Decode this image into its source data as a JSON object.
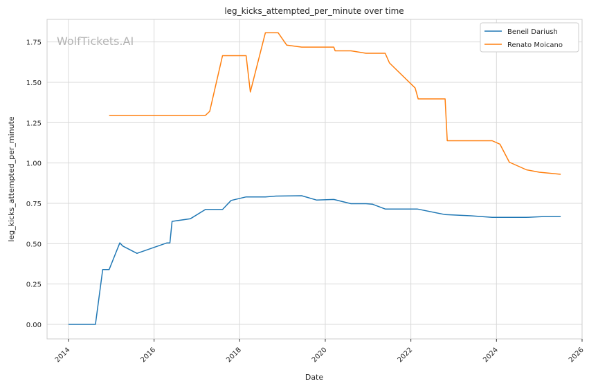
{
  "watermark": "WolfTickets.AI",
  "chart_data": {
    "type": "line",
    "title": "leg_kicks_attempted_per_minute over time",
    "xlabel": "Date",
    "ylabel": "leg_kicks_attempted_per_minute",
    "xlim": [
      2013.5,
      2026.0
    ],
    "ylim": [
      -0.09,
      1.89
    ],
    "x_ticks": [
      2014,
      2016,
      2018,
      2020,
      2022,
      2024,
      2026
    ],
    "y_ticks": [
      0.0,
      0.25,
      0.5,
      0.75,
      1.0,
      1.25,
      1.5,
      1.75
    ],
    "grid": true,
    "legend_position": "top-right",
    "series": [
      {
        "name": "Beneil Dariush",
        "color": "#1f77b4",
        "points": [
          [
            2014.0,
            0.0
          ],
          [
            2014.63,
            0.0
          ],
          [
            2014.8,
            0.34
          ],
          [
            2014.95,
            0.34
          ],
          [
            2015.2,
            0.505
          ],
          [
            2015.27,
            0.485
          ],
          [
            2015.6,
            0.44
          ],
          [
            2016.3,
            0.505
          ],
          [
            2016.37,
            0.505
          ],
          [
            2016.42,
            0.638
          ],
          [
            2016.85,
            0.655
          ],
          [
            2017.2,
            0.712
          ],
          [
            2017.6,
            0.712
          ],
          [
            2017.8,
            0.768
          ],
          [
            2018.15,
            0.79
          ],
          [
            2018.6,
            0.79
          ],
          [
            2018.85,
            0.795
          ],
          [
            2019.45,
            0.797
          ],
          [
            2019.8,
            0.77
          ],
          [
            2020.2,
            0.774
          ],
          [
            2020.6,
            0.748
          ],
          [
            2020.95,
            0.748
          ],
          [
            2021.1,
            0.745
          ],
          [
            2021.4,
            0.715
          ],
          [
            2022.15,
            0.715
          ],
          [
            2022.8,
            0.68
          ],
          [
            2023.4,
            0.673
          ],
          [
            2023.9,
            0.663
          ],
          [
            2024.7,
            0.663
          ],
          [
            2025.1,
            0.668
          ],
          [
            2025.5,
            0.668
          ]
        ]
      },
      {
        "name": "Renato Moicano",
        "color": "#ff7f0e",
        "points": [
          [
            2014.95,
            1.295
          ],
          [
            2017.2,
            1.295
          ],
          [
            2017.3,
            1.32
          ],
          [
            2017.6,
            1.665
          ],
          [
            2018.15,
            1.665
          ],
          [
            2018.25,
            1.44
          ],
          [
            2018.6,
            1.807
          ],
          [
            2018.9,
            1.807
          ],
          [
            2019.1,
            1.73
          ],
          [
            2019.45,
            1.718
          ],
          [
            2020.2,
            1.718
          ],
          [
            2020.23,
            1.695
          ],
          [
            2020.6,
            1.695
          ],
          [
            2020.95,
            1.68
          ],
          [
            2021.4,
            1.68
          ],
          [
            2021.5,
            1.62
          ],
          [
            2022.1,
            1.465
          ],
          [
            2022.17,
            1.397
          ],
          [
            2022.8,
            1.397
          ],
          [
            2022.85,
            1.138
          ],
          [
            2023.9,
            1.138
          ],
          [
            2024.08,
            1.117
          ],
          [
            2024.3,
            1.005
          ],
          [
            2024.7,
            0.958
          ],
          [
            2025.0,
            0.943
          ],
          [
            2025.5,
            0.93
          ]
        ]
      }
    ]
  }
}
